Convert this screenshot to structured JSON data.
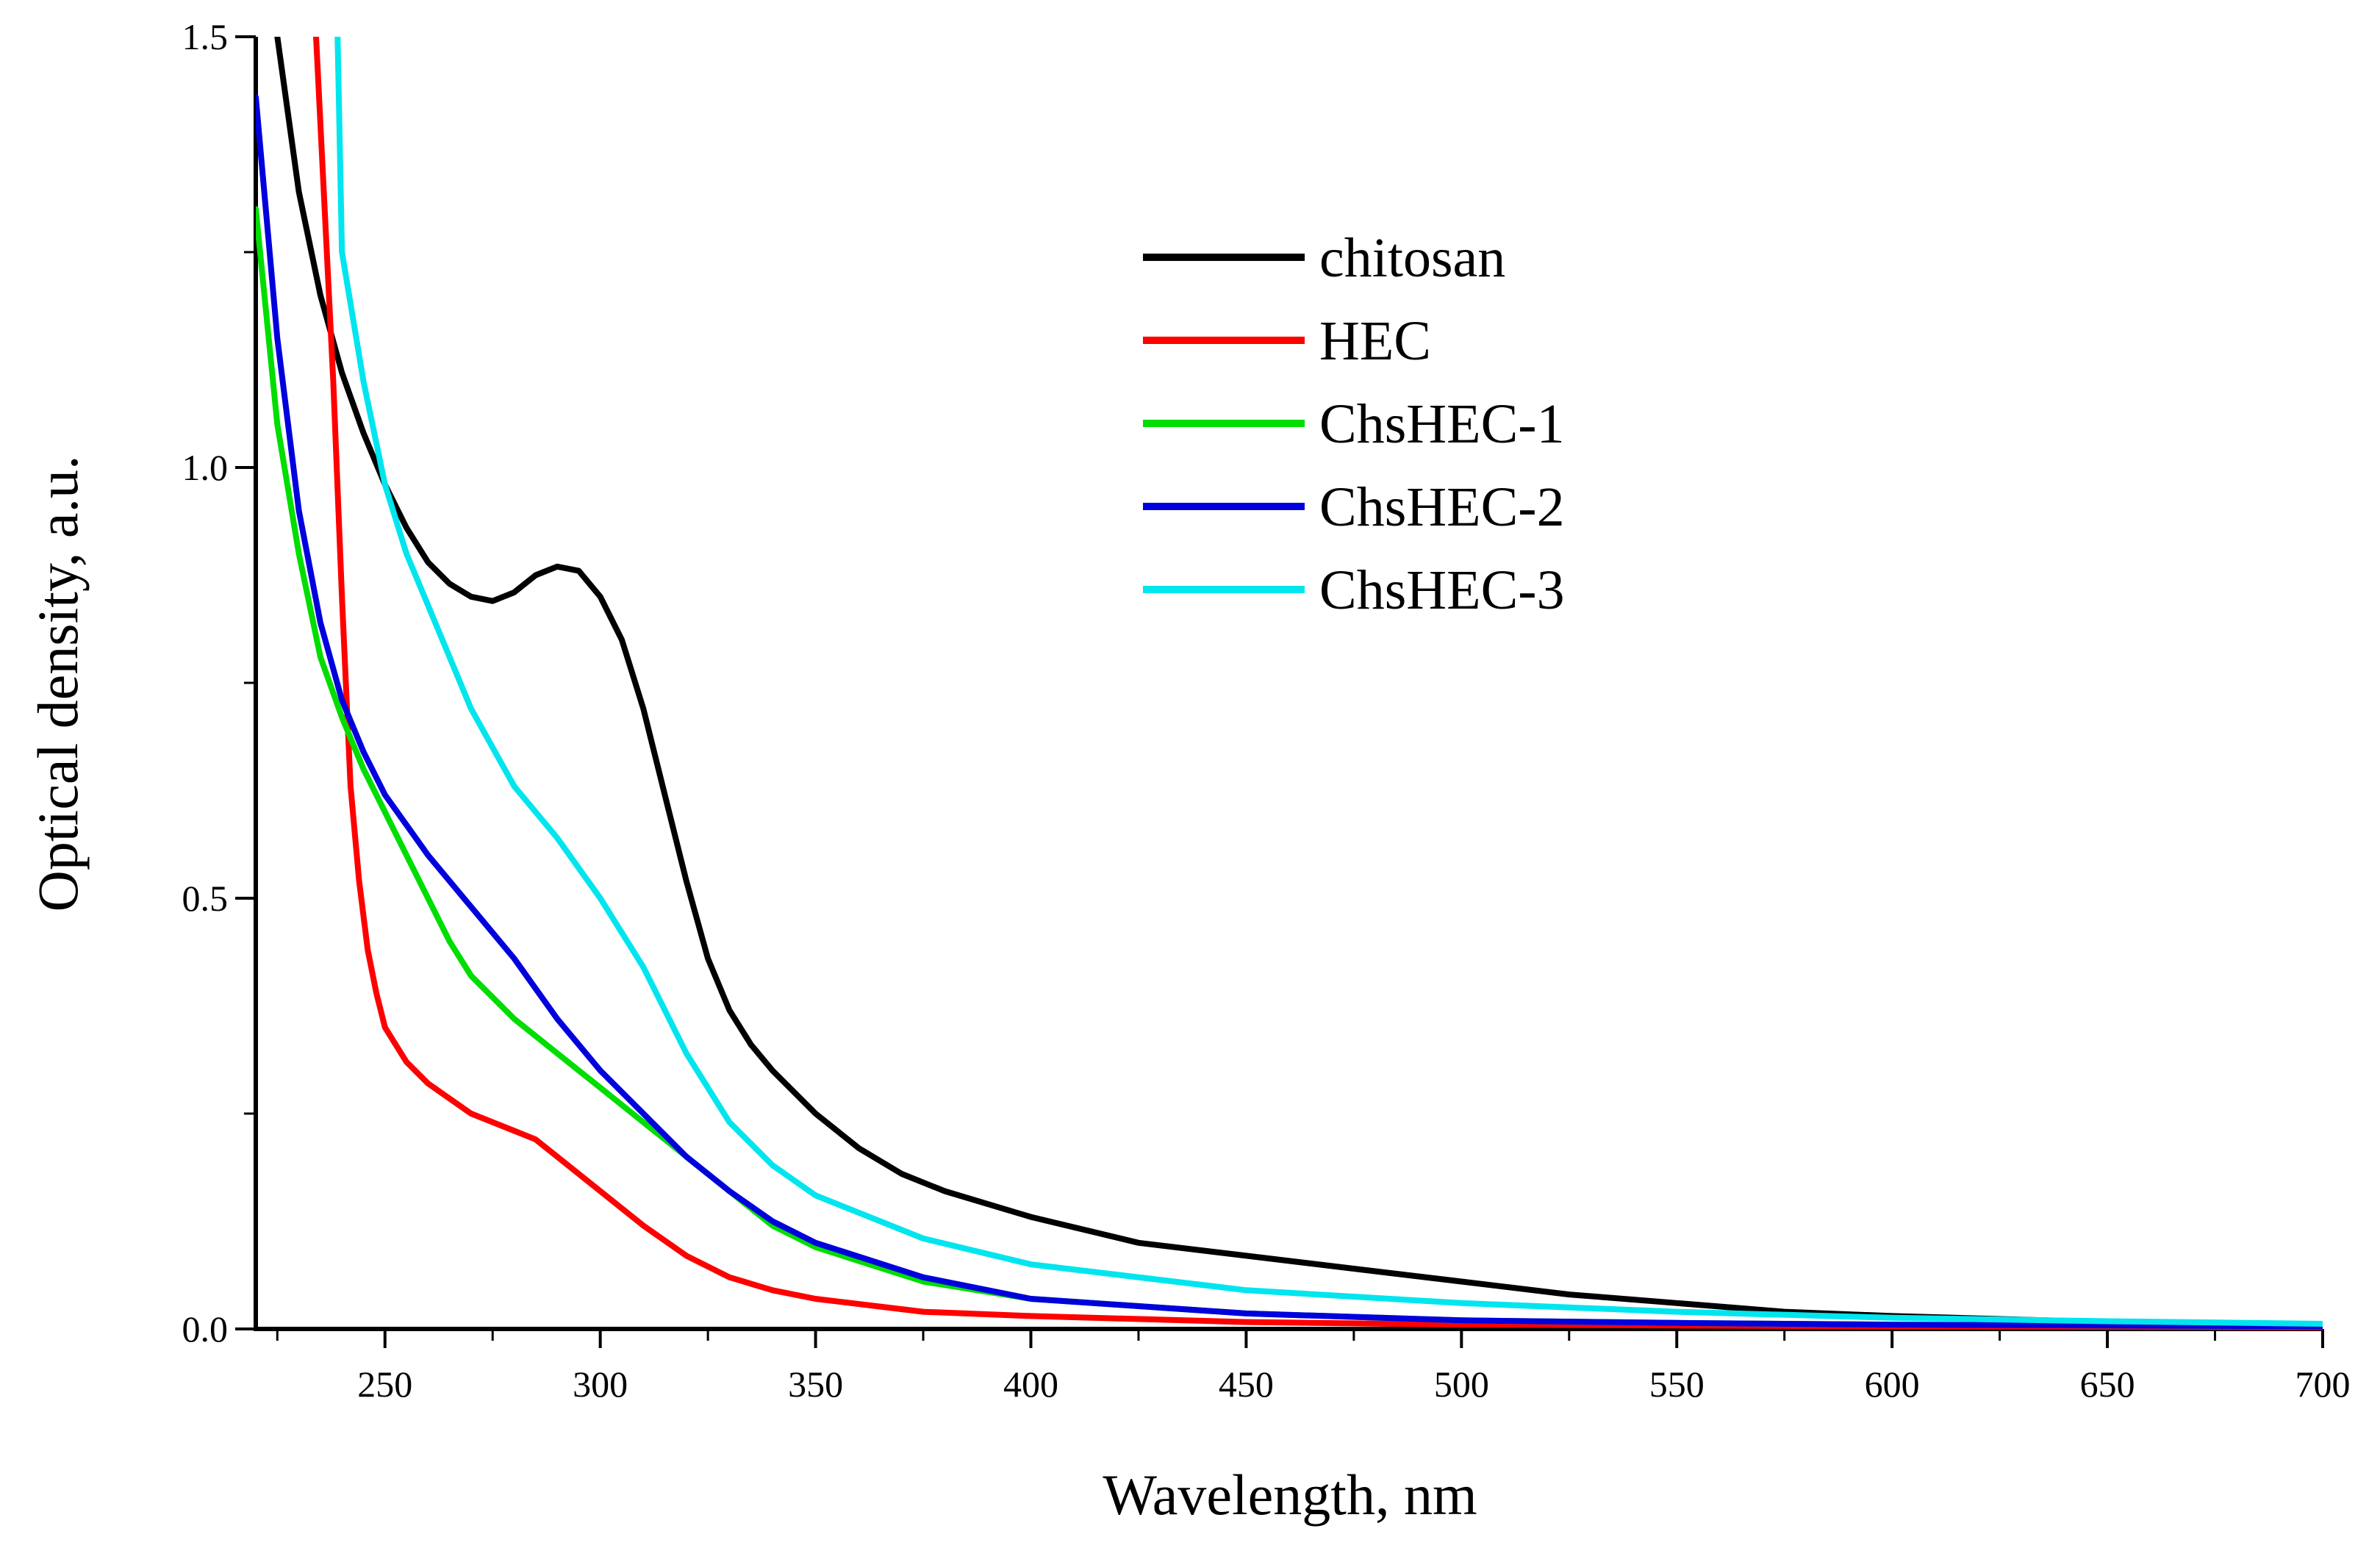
{
  "chart_data": {
    "type": "line",
    "title": "",
    "xlabel": "Wavelength, nm",
    "ylabel": "Optical density, a.u.",
    "xlim": [
      220,
      700
    ],
    "ylim": [
      0,
      1.5
    ],
    "x_ticks": [
      250,
      300,
      350,
      400,
      450,
      500,
      550,
      600,
      650,
      700
    ],
    "x_tick_labels": [
      "250",
      "300",
      "350",
      "400",
      "450",
      "500",
      "550",
      "600",
      "650",
      "700"
    ],
    "y_ticks": [
      0,
      0.5,
      1.0,
      1.5
    ],
    "y_tick_labels": [
      "0.0",
      "0.5",
      "1.0",
      "1.5"
    ],
    "grid": false,
    "legend_position": "top-center",
    "series": [
      {
        "name": "chitosan",
        "color": "#000000",
        "x": [
          225,
          230,
          235,
          240,
          245,
          250,
          255,
          260,
          265,
          270,
          275,
          280,
          285,
          290,
          295,
          300,
          305,
          310,
          315,
          320,
          325,
          330,
          335,
          340,
          350,
          360,
          370,
          380,
          400,
          425,
          450,
          475,
          500,
          525,
          550,
          575,
          600,
          650,
          700
        ],
        "y": [
          1.5,
          1.32,
          1.2,
          1.11,
          1.04,
          0.98,
          0.93,
          0.89,
          0.865,
          0.85,
          0.845,
          0.855,
          0.875,
          0.885,
          0.88,
          0.85,
          0.8,
          0.72,
          0.62,
          0.52,
          0.43,
          0.37,
          0.33,
          0.3,
          0.25,
          0.21,
          0.18,
          0.16,
          0.13,
          0.1,
          0.085,
          0.07,
          0.055,
          0.04,
          0.03,
          0.02,
          0.015,
          0.008,
          0.005
        ]
      },
      {
        "name": "HEC",
        "color": "#ff0000",
        "x": [
          234,
          236,
          238,
          240,
          242,
          244,
          246,
          248,
          250,
          255,
          260,
          270,
          280,
          285,
          290,
          300,
          310,
          320,
          330,
          340,
          350,
          375,
          400,
          450,
          500,
          550,
          600,
          700
        ],
        "y": [
          1.5,
          1.3,
          1.1,
          0.85,
          0.63,
          0.52,
          0.44,
          0.39,
          0.35,
          0.31,
          0.285,
          0.25,
          0.23,
          0.22,
          0.2,
          0.16,
          0.12,
          0.085,
          0.06,
          0.045,
          0.035,
          0.02,
          0.015,
          0.008,
          0.005,
          0.004,
          0.003,
          0.002
        ]
      },
      {
        "name": "ChsHEC-1",
        "color": "#00dd00",
        "x": [
          220,
          225,
          230,
          235,
          240,
          245,
          250,
          255,
          260,
          265,
          270,
          280,
          290,
          300,
          310,
          320,
          330,
          340,
          350,
          375,
          400,
          450,
          500,
          550,
          600,
          700
        ],
        "y": [
          1.3,
          1.05,
          0.9,
          0.78,
          0.71,
          0.65,
          0.6,
          0.55,
          0.5,
          0.45,
          0.41,
          0.36,
          0.32,
          0.28,
          0.24,
          0.2,
          0.16,
          0.12,
          0.095,
          0.055,
          0.035,
          0.018,
          0.01,
          0.007,
          0.005,
          0.003
        ]
      },
      {
        "name": "ChsHEC-2",
        "color": "#0000dd",
        "x": [
          220,
          225,
          230,
          235,
          240,
          245,
          250,
          260,
          270,
          280,
          290,
          300,
          310,
          320,
          330,
          340,
          350,
          375,
          400,
          450,
          500,
          550,
          600,
          700
        ],
        "y": [
          1.43,
          1.15,
          0.95,
          0.82,
          0.73,
          0.67,
          0.62,
          0.55,
          0.49,
          0.43,
          0.36,
          0.3,
          0.25,
          0.2,
          0.16,
          0.125,
          0.1,
          0.06,
          0.035,
          0.018,
          0.01,
          0.007,
          0.005,
          0.003
        ]
      },
      {
        "name": "ChsHEC-3",
        "color": "#00e5ee",
        "x": [
          239,
          240,
          245,
          250,
          255,
          260,
          270,
          280,
          290,
          300,
          310,
          320,
          330,
          340,
          350,
          375,
          400,
          450,
          500,
          550,
          600,
          650,
          700
        ],
        "y": [
          1.5,
          1.25,
          1.1,
          0.98,
          0.9,
          0.84,
          0.72,
          0.63,
          0.57,
          0.5,
          0.42,
          0.32,
          0.24,
          0.19,
          0.155,
          0.105,
          0.075,
          0.045,
          0.03,
          0.02,
          0.013,
          0.009,
          0.006
        ]
      }
    ]
  }
}
